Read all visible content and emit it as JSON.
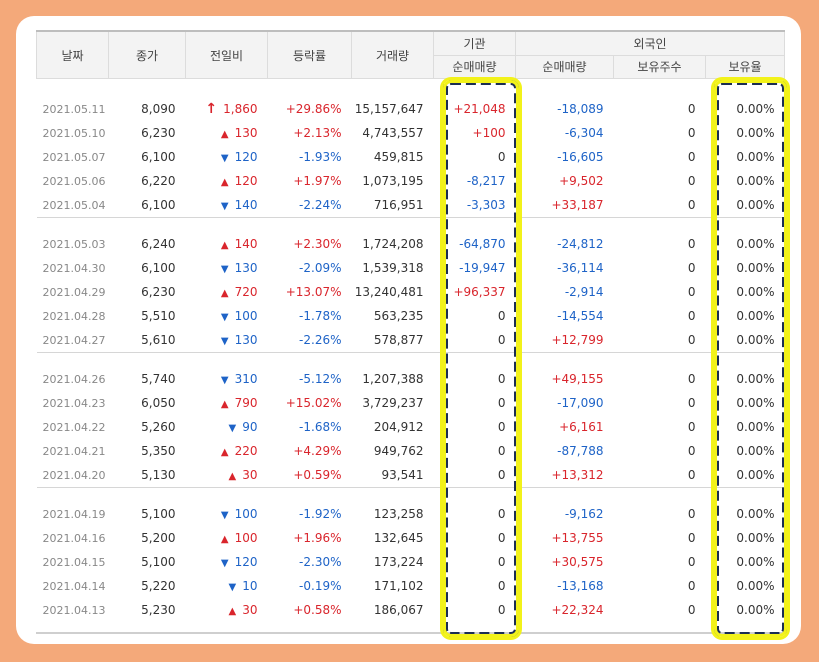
{
  "header": {
    "date": "날짜",
    "close": "종가",
    "change": "전일비",
    "rate": "등락률",
    "volume": "거래량",
    "institution": "기관",
    "inst_net": "순매매량",
    "foreign": "외국인",
    "for_net": "순매매량",
    "for_hold": "보유주수",
    "for_ratio": "보유율"
  },
  "groups": [
    [
      {
        "date": "2021.05.11",
        "close": "8,090",
        "dir": "limit",
        "change": "1,860",
        "rate": "+29.86%",
        "volume": "15,157,647",
        "inst": "+21,048",
        "forn": "-18,089",
        "hold": "0",
        "ratio": "0.00%"
      },
      {
        "date": "2021.05.10",
        "close": "6,230",
        "dir": "up",
        "change": "130",
        "rate": "+2.13%",
        "volume": "4,743,557",
        "inst": "+100",
        "forn": "-6,304",
        "hold": "0",
        "ratio": "0.00%"
      },
      {
        "date": "2021.05.07",
        "close": "6,100",
        "dir": "down",
        "change": "120",
        "rate": "-1.93%",
        "volume": "459,815",
        "inst": "0",
        "forn": "-16,605",
        "hold": "0",
        "ratio": "0.00%"
      },
      {
        "date": "2021.05.06",
        "close": "6,220",
        "dir": "up",
        "change": "120",
        "rate": "+1.97%",
        "volume": "1,073,195",
        "inst": "-8,217",
        "forn": "+9,502",
        "hold": "0",
        "ratio": "0.00%"
      },
      {
        "date": "2021.05.04",
        "close": "6,100",
        "dir": "down",
        "change": "140",
        "rate": "-2.24%",
        "volume": "716,951",
        "inst": "-3,303",
        "forn": "+33,187",
        "hold": "0",
        "ratio": "0.00%"
      }
    ],
    [
      {
        "date": "2021.05.03",
        "close": "6,240",
        "dir": "up",
        "change": "140",
        "rate": "+2.30%",
        "volume": "1,724,208",
        "inst": "-64,870",
        "forn": "-24,812",
        "hold": "0",
        "ratio": "0.00%"
      },
      {
        "date": "2021.04.30",
        "close": "6,100",
        "dir": "down",
        "change": "130",
        "rate": "-2.09%",
        "volume": "1,539,318",
        "inst": "-19,947",
        "forn": "-36,114",
        "hold": "0",
        "ratio": "0.00%"
      },
      {
        "date": "2021.04.29",
        "close": "6,230",
        "dir": "up",
        "change": "720",
        "rate": "+13.07%",
        "volume": "13,240,481",
        "inst": "+96,337",
        "forn": "-2,914",
        "hold": "0",
        "ratio": "0.00%"
      },
      {
        "date": "2021.04.28",
        "close": "5,510",
        "dir": "down",
        "change": "100",
        "rate": "-1.78%",
        "volume": "563,235",
        "inst": "0",
        "forn": "-14,554",
        "hold": "0",
        "ratio": "0.00%"
      },
      {
        "date": "2021.04.27",
        "close": "5,610",
        "dir": "down",
        "change": "130",
        "rate": "-2.26%",
        "volume": "578,877",
        "inst": "0",
        "forn": "+12,799",
        "hold": "0",
        "ratio": "0.00%"
      }
    ],
    [
      {
        "date": "2021.04.26",
        "close": "5,740",
        "dir": "down",
        "change": "310",
        "rate": "-5.12%",
        "volume": "1,207,388",
        "inst": "0",
        "forn": "+49,155",
        "hold": "0",
        "ratio": "0.00%"
      },
      {
        "date": "2021.04.23",
        "close": "6,050",
        "dir": "up",
        "change": "790",
        "rate": "+15.02%",
        "volume": "3,729,237",
        "inst": "0",
        "forn": "-17,090",
        "hold": "0",
        "ratio": "0.00%"
      },
      {
        "date": "2021.04.22",
        "close": "5,260",
        "dir": "down",
        "change": "90",
        "rate": "-1.68%",
        "volume": "204,912",
        "inst": "0",
        "forn": "+6,161",
        "hold": "0",
        "ratio": "0.00%"
      },
      {
        "date": "2021.04.21",
        "close": "5,350",
        "dir": "up",
        "change": "220",
        "rate": "+4.29%",
        "volume": "949,762",
        "inst": "0",
        "forn": "-87,788",
        "hold": "0",
        "ratio": "0.00%"
      },
      {
        "date": "2021.04.20",
        "close": "5,130",
        "dir": "up",
        "change": "30",
        "rate": "+0.59%",
        "volume": "93,541",
        "inst": "0",
        "forn": "+13,312",
        "hold": "0",
        "ratio": "0.00%"
      }
    ],
    [
      {
        "date": "2021.04.19",
        "close": "5,100",
        "dir": "down",
        "change": "100",
        "rate": "-1.92%",
        "volume": "123,258",
        "inst": "0",
        "forn": "-9,162",
        "hold": "0",
        "ratio": "0.00%"
      },
      {
        "date": "2021.04.16",
        "close": "5,200",
        "dir": "up",
        "change": "100",
        "rate": "+1.96%",
        "volume": "132,645",
        "inst": "0",
        "forn": "+13,755",
        "hold": "0",
        "ratio": "0.00%"
      },
      {
        "date": "2021.04.15",
        "close": "5,100",
        "dir": "down",
        "change": "120",
        "rate": "-2.30%",
        "volume": "173,224",
        "inst": "0",
        "forn": "+30,575",
        "hold": "0",
        "ratio": "0.00%"
      },
      {
        "date": "2021.04.14",
        "close": "5,220",
        "dir": "down",
        "change": "10",
        "rate": "-0.19%",
        "volume": "171,102",
        "inst": "0",
        "forn": "-13,168",
        "hold": "0",
        "ratio": "0.00%"
      },
      {
        "date": "2021.04.13",
        "close": "5,230",
        "dir": "up",
        "change": "30",
        "rate": "+0.58%",
        "volume": "186,067",
        "inst": "0",
        "forn": "+22,324",
        "hold": "0",
        "ratio": "0.00%"
      }
    ]
  ],
  "colors": {
    "up": "#d9252c",
    "down": "#1e63c7",
    "frame": "#f4a97a",
    "highlight_fill": "#f2f21a",
    "highlight_dash": "#1b2d52"
  },
  "icons": {
    "up": "triangle-up-icon",
    "down": "triangle-down-icon",
    "limit": "arrow-up-icon"
  }
}
